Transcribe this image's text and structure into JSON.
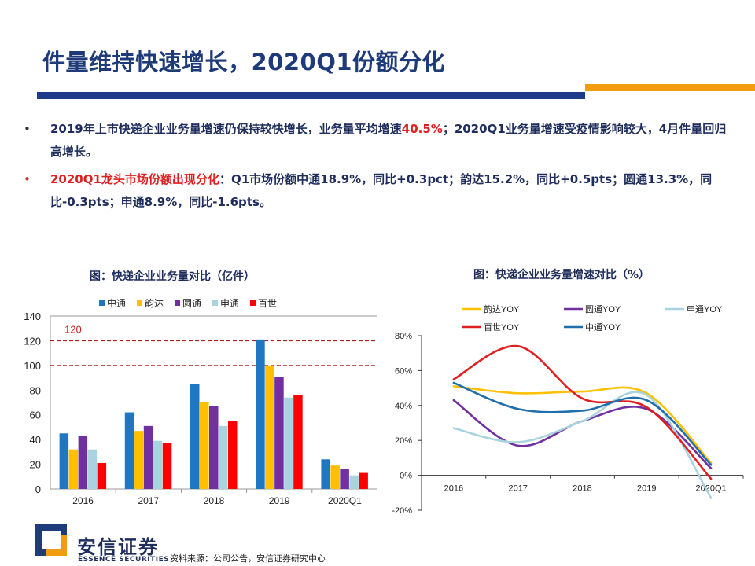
{
  "title": "件量维持快速增长，2020Q1份额分化",
  "bullets": [
    {
      "parts": [
        {
          "text": "2019年上市快递企业业务量增速仍保持较快增长，业务量平均增速",
          "red": false
        },
        {
          "text": "40.5%",
          "red": true
        },
        {
          "text": "；2020Q1业务量增速受疫情影响较大，4月件量回归高增长。",
          "red": false
        }
      ]
    },
    {
      "parts": [
        {
          "text": "2020Q1龙头市场份额出现分化",
          "red": true
        },
        {
          "text": "：Q1市场份额中通18.9%，同比+0.3pct；韵达15.2%，同比+0.5pts；圆通13.3%，同比-0.3pts；申通8.9%，同比-1.6pts。",
          "red": false
        }
      ]
    }
  ],
  "bullet_symbol": "•",
  "chart_data": [
    {
      "type": "bar",
      "title": "图：快递企业业务量对比（亿件）",
      "categories": [
        "2016",
        "2017",
        "2018",
        "2019",
        "2020Q1"
      ],
      "series": [
        {
          "name": "中通",
          "color": "#1f77c4",
          "values": [
            45,
            62,
            85,
            121,
            24
          ]
        },
        {
          "name": "韵达",
          "color": "#ffc000",
          "values": [
            32,
            47,
            70,
            100,
            19
          ]
        },
        {
          "name": "圆通",
          "color": "#7030a0",
          "values": [
            43,
            51,
            67,
            91,
            16
          ]
        },
        {
          "name": "申通",
          "color": "#a9d3df",
          "values": [
            32,
            39,
            51,
            74,
            11
          ]
        },
        {
          "name": "百世",
          "color": "#ff0000",
          "values": [
            21,
            37,
            55,
            76,
            13
          ]
        }
      ],
      "ylim": [
        0,
        140
      ],
      "yticks": [
        0,
        20,
        40,
        60,
        80,
        100,
        120,
        140
      ],
      "reference_lines": [
        120,
        100
      ],
      "annotation": "120",
      "legend": "top"
    },
    {
      "type": "line",
      "title": "图：快递企业业务量增速对比（%）",
      "categories": [
        "2016",
        "2017",
        "2018",
        "2019",
        "2020Q1"
      ],
      "series": [
        {
          "name": "韵达YOY",
          "color": "#ffc000",
          "values": [
            51,
            47,
            48,
            47,
            7
          ]
        },
        {
          "name": "圆通YOY",
          "color": "#7030a0",
          "values": [
            43,
            17,
            31,
            38,
            4
          ]
        },
        {
          "name": "申通YOY",
          "color": "#a9d3df",
          "values": [
            27,
            19,
            31,
            46,
            -13
          ]
        },
        {
          "name": "百世YOY",
          "color": "#e02020",
          "values": [
            55,
            74,
            44,
            39,
            -2
          ]
        },
        {
          "name": "中通YOY",
          "color": "#1f6fad",
          "values": [
            53,
            38,
            37,
            43,
            6
          ]
        }
      ],
      "ylim": [
        -20,
        80
      ],
      "yticks": [
        "-20%",
        "0%",
        "20%",
        "40%",
        "60%",
        "80%"
      ],
      "ytick_values": [
        -20,
        0,
        20,
        40,
        60,
        80
      ],
      "legend": "top"
    }
  ],
  "logo": {
    "cn": "安信证券",
    "en": "ESSENCE SECURITIES"
  },
  "source": "资料来源：公司公告，安信证券研究中心"
}
